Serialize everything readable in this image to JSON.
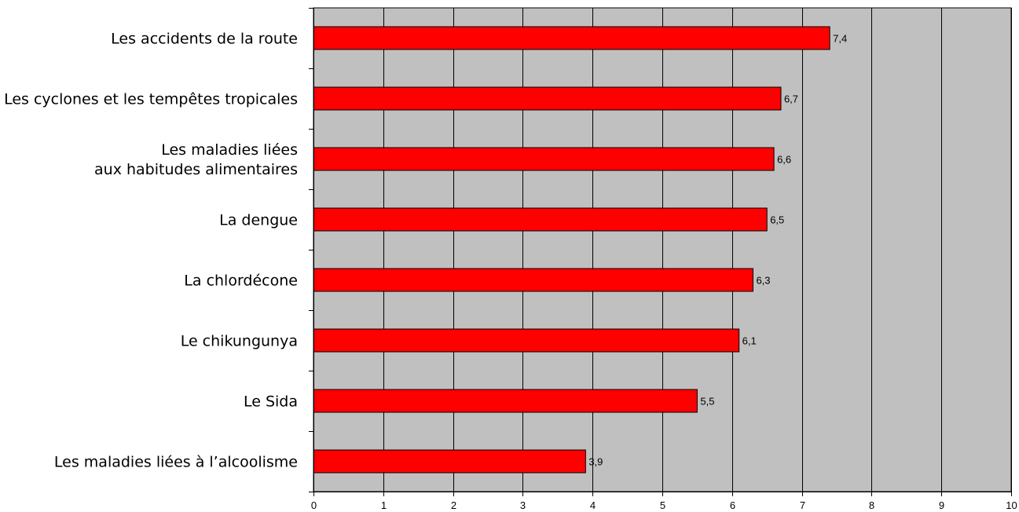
{
  "colors": {
    "plot_background": "#c0c0c0",
    "bar_fill": "#ff0000",
    "bar_stroke": "#000000",
    "gridline": "#000000"
  },
  "chart_data": {
    "type": "bar",
    "orientation": "horizontal",
    "title": "",
    "xlabel": "",
    "ylabel": "",
    "categories": [
      [
        "Les accidents de la route"
      ],
      [
        "Les cyclones et les tempêtes tropicales"
      ],
      [
        "Les maladies liées",
        "aux habitudes  alimentaires"
      ],
      [
        "La dengue"
      ],
      [
        "La chlordécone"
      ],
      [
        "Le chikungunya"
      ],
      [
        "Le Sida"
      ],
      [
        "Les maladies liées à l’alcoolisme"
      ]
    ],
    "values": [
      7.4,
      6.7,
      6.6,
      6.5,
      6.3,
      6.1,
      5.5,
      3.9
    ],
    "value_labels": [
      "7,4",
      "6,7",
      "6,6",
      "6,5",
      "6,3",
      "6,1",
      "5,5",
      "3,9"
    ],
    "xlim": [
      0,
      10
    ],
    "xticks": [
      0,
      1,
      2,
      3,
      4,
      5,
      6,
      7,
      8,
      9,
      10
    ],
    "xtick_labels": [
      "0",
      "1",
      "2",
      "3",
      "4",
      "5",
      "6",
      "7",
      "8",
      "9",
      "10"
    ],
    "grid": true,
    "legend": "none"
  }
}
